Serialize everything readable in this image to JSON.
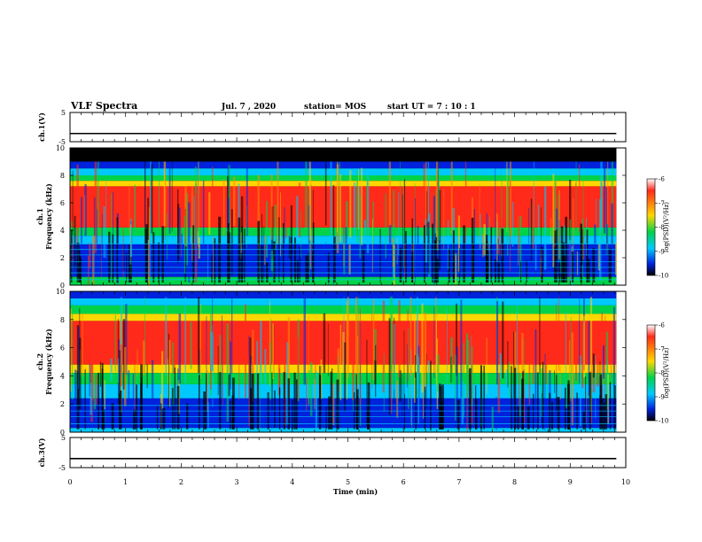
{
  "header": {
    "title": "VLF Spectra",
    "date": "Jul. 7 , 2020",
    "station": "station= MOS",
    "start": "start UT = 7 : 10 : 1"
  },
  "colorbar": {
    "label": "log(PSD)(V²/Hz)",
    "ticks": [
      "-6",
      "-7",
      "-8",
      "-9",
      "-10"
    ]
  },
  "colors": {
    "red": "#ff2a1a",
    "orange": "#ff8c00",
    "yellow": "#ffd700",
    "green": "#00d34a",
    "cyan": "#00c8ff",
    "blue": "#0022dd",
    "black": "#000000"
  },
  "chart_data": [
    {
      "type": "line",
      "name": "waveform ch1",
      "ylabel": "ch.1(V)",
      "ylim": [
        -5,
        5
      ],
      "yticks": [
        "5",
        "-5"
      ],
      "xlim": [
        0,
        10
      ],
      "value": -2.2
    },
    {
      "type": "heatmap",
      "name": "spectrogram ch1",
      "ylabel": "ch.1\nFrequency (kHz)",
      "ylim": [
        0,
        10
      ],
      "yticks": [
        "0",
        "2",
        "4",
        "6",
        "8",
        "10"
      ],
      "xlim": [
        0,
        10
      ],
      "data_extent_min": 9.83,
      "zlim": [
        -10,
        -6
      ]
    },
    {
      "type": "heatmap",
      "name": "spectrogram ch2",
      "ylabel": "ch.2\nFrequency (kHz)",
      "ylim": [
        0,
        10
      ],
      "yticks": [
        "0",
        "2",
        "4",
        "6",
        "8",
        "10"
      ],
      "xlim": [
        0,
        10
      ],
      "data_extent_min": 9.83,
      "zlim": [
        -10,
        -6
      ]
    },
    {
      "type": "line",
      "name": "waveform ch3",
      "ylabel": "ch.3(V)",
      "ylim": [
        -5,
        5
      ],
      "yticks": [
        "5",
        "-5"
      ],
      "xlim": [
        0,
        10
      ],
      "value": -2.0
    }
  ],
  "xaxis": {
    "label": "Time (min)",
    "ticks": [
      "0",
      "1",
      "2",
      "3",
      "4",
      "5",
      "6",
      "7",
      "8",
      "9",
      "10"
    ]
  }
}
